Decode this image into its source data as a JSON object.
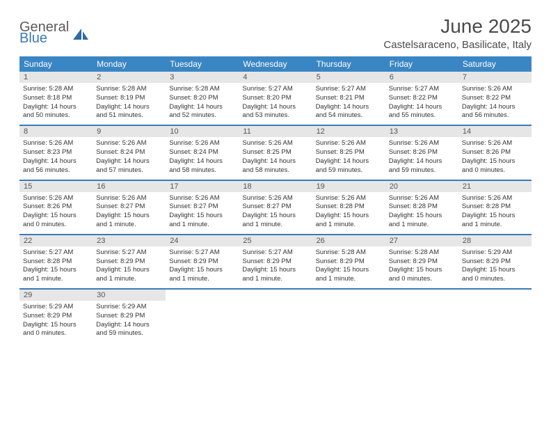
{
  "brand": {
    "line1": "General",
    "line2": "Blue"
  },
  "title": "June 2025",
  "location": "Castelsaraceno, Basilicate, Italy",
  "colors": {
    "header_bar": "#3a86c4",
    "accent": "#3a7ab8",
    "daynum_bg": "#e6e6e6",
    "text": "#333333",
    "title_text": "#4a4a4a"
  },
  "dows": [
    "Sunday",
    "Monday",
    "Tuesday",
    "Wednesday",
    "Thursday",
    "Friday",
    "Saturday"
  ],
  "weeks": [
    [
      {
        "n": "1",
        "sr": "Sunrise: 5:28 AM",
        "ss": "Sunset: 8:18 PM",
        "dl1": "Daylight: 14 hours",
        "dl2": "and 50 minutes."
      },
      {
        "n": "2",
        "sr": "Sunrise: 5:28 AM",
        "ss": "Sunset: 8:19 PM",
        "dl1": "Daylight: 14 hours",
        "dl2": "and 51 minutes."
      },
      {
        "n": "3",
        "sr": "Sunrise: 5:28 AM",
        "ss": "Sunset: 8:20 PM",
        "dl1": "Daylight: 14 hours",
        "dl2": "and 52 minutes."
      },
      {
        "n": "4",
        "sr": "Sunrise: 5:27 AM",
        "ss": "Sunset: 8:20 PM",
        "dl1": "Daylight: 14 hours",
        "dl2": "and 53 minutes."
      },
      {
        "n": "5",
        "sr": "Sunrise: 5:27 AM",
        "ss": "Sunset: 8:21 PM",
        "dl1": "Daylight: 14 hours",
        "dl2": "and 54 minutes."
      },
      {
        "n": "6",
        "sr": "Sunrise: 5:27 AM",
        "ss": "Sunset: 8:22 PM",
        "dl1": "Daylight: 14 hours",
        "dl2": "and 55 minutes."
      },
      {
        "n": "7",
        "sr": "Sunrise: 5:26 AM",
        "ss": "Sunset: 8:22 PM",
        "dl1": "Daylight: 14 hours",
        "dl2": "and 56 minutes."
      }
    ],
    [
      {
        "n": "8",
        "sr": "Sunrise: 5:26 AM",
        "ss": "Sunset: 8:23 PM",
        "dl1": "Daylight: 14 hours",
        "dl2": "and 56 minutes."
      },
      {
        "n": "9",
        "sr": "Sunrise: 5:26 AM",
        "ss": "Sunset: 8:24 PM",
        "dl1": "Daylight: 14 hours",
        "dl2": "and 57 minutes."
      },
      {
        "n": "10",
        "sr": "Sunrise: 5:26 AM",
        "ss": "Sunset: 8:24 PM",
        "dl1": "Daylight: 14 hours",
        "dl2": "and 58 minutes."
      },
      {
        "n": "11",
        "sr": "Sunrise: 5:26 AM",
        "ss": "Sunset: 8:25 PM",
        "dl1": "Daylight: 14 hours",
        "dl2": "and 58 minutes."
      },
      {
        "n": "12",
        "sr": "Sunrise: 5:26 AM",
        "ss": "Sunset: 8:25 PM",
        "dl1": "Daylight: 14 hours",
        "dl2": "and 59 minutes."
      },
      {
        "n": "13",
        "sr": "Sunrise: 5:26 AM",
        "ss": "Sunset: 8:26 PM",
        "dl1": "Daylight: 14 hours",
        "dl2": "and 59 minutes."
      },
      {
        "n": "14",
        "sr": "Sunrise: 5:26 AM",
        "ss": "Sunset: 8:26 PM",
        "dl1": "Daylight: 15 hours",
        "dl2": "and 0 minutes."
      }
    ],
    [
      {
        "n": "15",
        "sr": "Sunrise: 5:26 AM",
        "ss": "Sunset: 8:26 PM",
        "dl1": "Daylight: 15 hours",
        "dl2": "and 0 minutes."
      },
      {
        "n": "16",
        "sr": "Sunrise: 5:26 AM",
        "ss": "Sunset: 8:27 PM",
        "dl1": "Daylight: 15 hours",
        "dl2": "and 1 minute."
      },
      {
        "n": "17",
        "sr": "Sunrise: 5:26 AM",
        "ss": "Sunset: 8:27 PM",
        "dl1": "Daylight: 15 hours",
        "dl2": "and 1 minute."
      },
      {
        "n": "18",
        "sr": "Sunrise: 5:26 AM",
        "ss": "Sunset: 8:27 PM",
        "dl1": "Daylight: 15 hours",
        "dl2": "and 1 minute."
      },
      {
        "n": "19",
        "sr": "Sunrise: 5:26 AM",
        "ss": "Sunset: 8:28 PM",
        "dl1": "Daylight: 15 hours",
        "dl2": "and 1 minute."
      },
      {
        "n": "20",
        "sr": "Sunrise: 5:26 AM",
        "ss": "Sunset: 8:28 PM",
        "dl1": "Daylight: 15 hours",
        "dl2": "and 1 minute."
      },
      {
        "n": "21",
        "sr": "Sunrise: 5:26 AM",
        "ss": "Sunset: 8:28 PM",
        "dl1": "Daylight: 15 hours",
        "dl2": "and 1 minute."
      }
    ],
    [
      {
        "n": "22",
        "sr": "Sunrise: 5:27 AM",
        "ss": "Sunset: 8:28 PM",
        "dl1": "Daylight: 15 hours",
        "dl2": "and 1 minute."
      },
      {
        "n": "23",
        "sr": "Sunrise: 5:27 AM",
        "ss": "Sunset: 8:29 PM",
        "dl1": "Daylight: 15 hours",
        "dl2": "and 1 minute."
      },
      {
        "n": "24",
        "sr": "Sunrise: 5:27 AM",
        "ss": "Sunset: 8:29 PM",
        "dl1": "Daylight: 15 hours",
        "dl2": "and 1 minute."
      },
      {
        "n": "25",
        "sr": "Sunrise: 5:27 AM",
        "ss": "Sunset: 8:29 PM",
        "dl1": "Daylight: 15 hours",
        "dl2": "and 1 minute."
      },
      {
        "n": "26",
        "sr": "Sunrise: 5:28 AM",
        "ss": "Sunset: 8:29 PM",
        "dl1": "Daylight: 15 hours",
        "dl2": "and 1 minute."
      },
      {
        "n": "27",
        "sr": "Sunrise: 5:28 AM",
        "ss": "Sunset: 8:29 PM",
        "dl1": "Daylight: 15 hours",
        "dl2": "and 0 minutes."
      },
      {
        "n": "28",
        "sr": "Sunrise: 5:29 AM",
        "ss": "Sunset: 8:29 PM",
        "dl1": "Daylight: 15 hours",
        "dl2": "and 0 minutes."
      }
    ],
    [
      {
        "n": "29",
        "sr": "Sunrise: 5:29 AM",
        "ss": "Sunset: 8:29 PM",
        "dl1": "Daylight: 15 hours",
        "dl2": "and 0 minutes."
      },
      {
        "n": "30",
        "sr": "Sunrise: 5:29 AM",
        "ss": "Sunset: 8:29 PM",
        "dl1": "Daylight: 14 hours",
        "dl2": "and 59 minutes."
      },
      null,
      null,
      null,
      null,
      null
    ]
  ]
}
